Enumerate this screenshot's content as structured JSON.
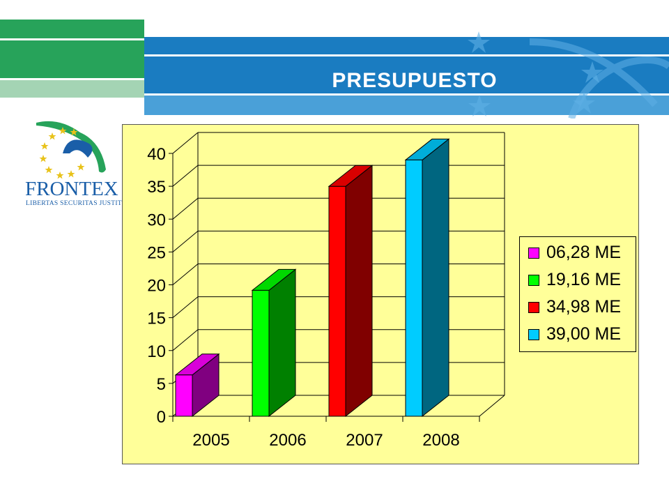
{
  "slide": {
    "title": "PRESUPUESTO",
    "colors": {
      "green": "#27a35a",
      "blue": "#1a7cc1",
      "chart_background": "#ffff99"
    }
  },
  "logo": {
    "name": "FRONTEX",
    "motto": "LIBERTAS  SECURITAS  JUSTITIA"
  },
  "chart_data": {
    "type": "bar",
    "style": "3d-column",
    "categories": [
      "2005",
      "2006",
      "2007",
      "2008"
    ],
    "values": [
      6.28,
      19.16,
      34.98,
      39.0
    ],
    "colors": [
      "#ff00ff",
      "#00ff00",
      "#ff0000",
      "#00ccff"
    ],
    "ylim": [
      0,
      40
    ],
    "yticks": [
      0,
      5,
      10,
      15,
      20,
      25,
      30,
      35,
      40
    ],
    "grid": true,
    "legend": {
      "position": "right",
      "entries": [
        "06,28 ME",
        "19,16 ME",
        "34,98 ME",
        "39,00 ME"
      ]
    }
  }
}
